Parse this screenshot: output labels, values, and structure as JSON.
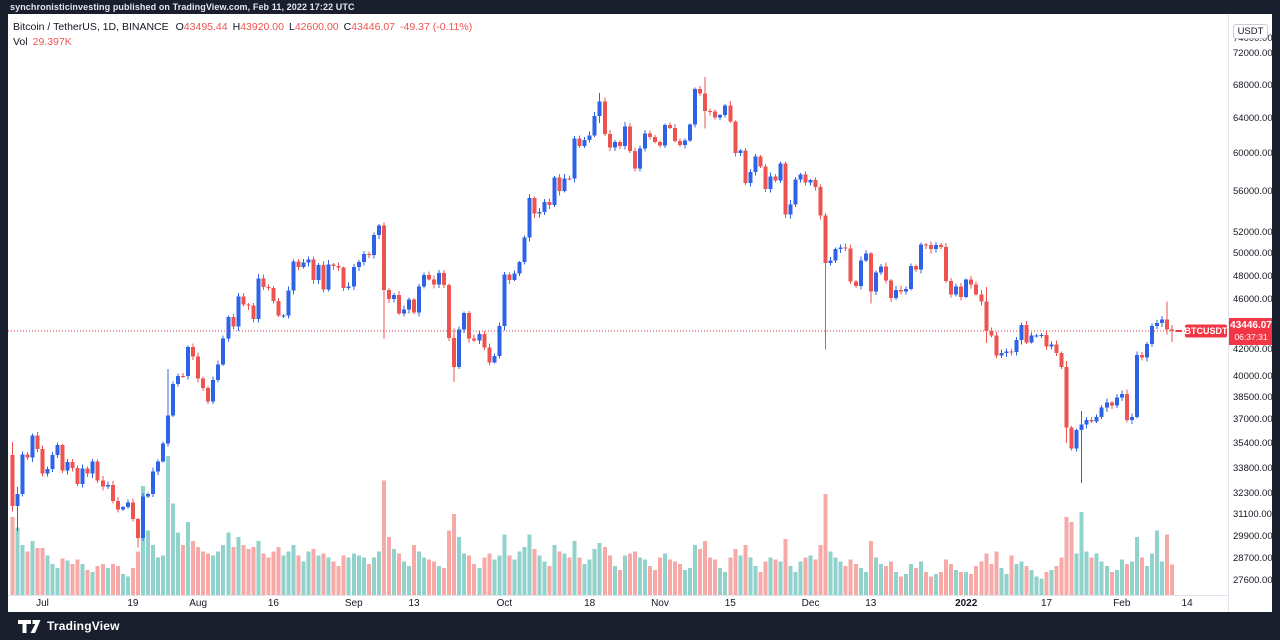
{
  "top_bar": {
    "publish_text": "synchronisticinvesting published on TradingView.com, Feb 11, 2022 17:22 UTC"
  },
  "legend": {
    "symbol_line": "Bitcoin / TetherUS, 1D, BINANCE",
    "ohlc": [
      {
        "label": "O",
        "value": "43495.44"
      },
      {
        "label": "H",
        "value": "43920.00"
      },
      {
        "label": "L",
        "value": "42600.00"
      },
      {
        "label": "C",
        "value": "43446.07"
      }
    ],
    "change": "-49.37 (-0.11%)",
    "vol_label": "Vol",
    "vol_value": "29.397K"
  },
  "price_axis": {
    "currency_button": "USDT",
    "last_price_label": "43446.07",
    "countdown": "06:37:31"
  },
  "price_flag": "BTCUSDT",
  "footer": {
    "brand": "TradingView"
  },
  "colors": {
    "up": "#2e63e8",
    "down": "#ef5350",
    "vol_up": "rgba(38,166,154,0.5)",
    "vol_down": "rgba(239,83,80,0.5)",
    "price_line": "#f23645",
    "frame": "#1a1f2e",
    "axis_text": "#131722"
  },
  "chart_data": {
    "type": "candlestick_with_volume",
    "symbol": "BTCUSDT",
    "exchange": "BINANCE",
    "interval": "1D",
    "price_scale": "log",
    "start_date": "2021-06-25",
    "end_date": "2022-02-11",
    "last_price": 43446.07,
    "current_bar": {
      "open": 43495.44,
      "high": 43920.0,
      "low": 42600.0,
      "close": 43446.07,
      "volume_k": 29.397
    },
    "first_open": 34663,
    "closes": [
      31584,
      32283,
      34700,
      34494,
      35911,
      35045,
      33504,
      33786,
      34669,
      35286,
      33690,
      34220,
      33862,
      32875,
      33815,
      33502,
      34259,
      33086,
      32729,
      32820,
      31880,
      31383,
      31520,
      31778,
      30839,
      29790,
      32144,
      32287,
      33634,
      34258,
      35381,
      37237,
      39457,
      40019,
      40016,
      42206,
      41461,
      39845,
      39147,
      38207,
      39723,
      40862,
      42836,
      44572,
      43794,
      46253,
      45584,
      45511,
      44399,
      47800,
      47068,
      46973,
      45901,
      44686,
      44700,
      46760,
      49322,
      48821,
      49239,
      49488,
      47674,
      48973,
      46843,
      49056,
      48897,
      48760,
      46982,
      47100,
      48810,
      49246,
      49999,
      49915,
      51753,
      52663,
      46811,
      46048,
      46395,
      44850,
      45173,
      46025,
      44940,
      47092,
      48121,
      47737,
      47299,
      48292,
      47239,
      42901,
      40693,
      43574,
      44895,
      42839,
      42687,
      43204,
      42150,
      41026,
      41522,
      43824,
      48165,
      47672,
      48222,
      49243,
      51505,
      55343,
      53802,
      53957,
      54949,
      54659,
      57471,
      56041,
      57372,
      57347,
      61672,
      60875,
      61528,
      62010,
      64280,
      65992,
      62210,
      60688,
      61286,
      60852,
      63078,
      60328,
      58413,
      60575,
      62253,
      61859,
      61299,
      60911,
      63219,
      62896,
      61395,
      60937,
      61470,
      63273,
      67525,
      66947,
      64882,
      64774,
      64122,
      64380,
      65519,
      63606,
      60058,
      60344,
      56891,
      58052,
      59707,
      58622,
      56247,
      57541,
      57139,
      58960,
      53726,
      54721,
      57274,
      57776,
      56950,
      57184,
      56480,
      53601,
      49152,
      49396,
      50441,
      50588,
      50471,
      47545,
      47140,
      49389,
      50053,
      46702,
      48343,
      48864,
      47632,
      46131,
      46834,
      46681,
      46914,
      48889,
      48588,
      50838,
      50820,
      50429,
      50809,
      50640,
      47588,
      46444,
      47120,
      46216,
      47722,
      47286,
      46446,
      45832,
      43425,
      43097,
      41557,
      41733,
      41864,
      41822,
      42735,
      43902,
      42560,
      43073,
      43096,
      43113,
      42250,
      42375,
      41744,
      40680,
      36445,
      35071,
      36276,
      36654,
      36954,
      36852,
      37138,
      37784,
      38138,
      37917,
      38483,
      38743,
      36944,
      37149,
      41574,
      41382,
      42412,
      43840,
      44096,
      44347,
      43571,
      43446
    ],
    "volumes_k": [
      75,
      65,
      48,
      42,
      52,
      45,
      45,
      38,
      30,
      26,
      35,
      33,
      30,
      34,
      30,
      24,
      22,
      28,
      30,
      26,
      30,
      28,
      20,
      18,
      26,
      42,
      105,
      62,
      48,
      36,
      38,
      134,
      88,
      60,
      48,
      70,
      52,
      46,
      42,
      40,
      38,
      42,
      48,
      60,
      46,
      56,
      48,
      44,
      46,
      52,
      40,
      36,
      42,
      46,
      38,
      42,
      48,
      38,
      32,
      42,
      44,
      38,
      40,
      36,
      32,
      28,
      38,
      36,
      40,
      38,
      36,
      30,
      36,
      42,
      110,
      56,
      44,
      40,
      32,
      28,
      48,
      42,
      36,
      34,
      32,
      28,
      26,
      62,
      78,
      56,
      40,
      38,
      30,
      26,
      36,
      40,
      34,
      38,
      58,
      38,
      34,
      42,
      46,
      58,
      44,
      38,
      32,
      28,
      48,
      42,
      40,
      36,
      52,
      36,
      30,
      34,
      44,
      50,
      46,
      38,
      28,
      24,
      38,
      40,
      42,
      36,
      34,
      28,
      24,
      36,
      40,
      34,
      32,
      30,
      24,
      26,
      48,
      44,
      52,
      36,
      34,
      26,
      22,
      36,
      44,
      38,
      48,
      36,
      28,
      22,
      32,
      36,
      34,
      32,
      54,
      28,
      22,
      32,
      36,
      38,
      34,
      48,
      97,
      42,
      36,
      32,
      28,
      34,
      30,
      26,
      22,
      52,
      36,
      30,
      28,
      32,
      22,
      18,
      20,
      30,
      26,
      32,
      22,
      18,
      20,
      22,
      34,
      30,
      24,
      22,
      22,
      20,
      28,
      32,
      40,
      30,
      42,
      26,
      20,
      38,
      30,
      32,
      28,
      24,
      18,
      16,
      22,
      24,
      28,
      36,
      75,
      70,
      40,
      80,
      42,
      36,
      40,
      32,
      28,
      22,
      24,
      34,
      30,
      32,
      56,
      36,
      28,
      40,
      62,
      32,
      58,
      29.4
    ],
    "wick_overrides": {
      "0": [
        35500,
        31275
      ],
      "1": [
        32700,
        30173
      ],
      "25": [
        30900,
        29278
      ],
      "31": [
        40550,
        35205
      ],
      "74": [
        52920,
        42843
      ],
      "88": [
        43639,
        39600
      ],
      "117": [
        67000,
        63481
      ],
      "138": [
        69000,
        62822
      ],
      "162": [
        53859,
        42000
      ],
      "171": [
        50189,
        45672
      ],
      "194": [
        47070,
        42500
      ],
      "210": [
        41120,
        35440
      ],
      "213": [
        37550,
        32950
      ],
      "230": [
        45855,
        43174
      ],
      "231": [
        43920,
        42600
      ]
    },
    "y_axis_ticks": [
      74000,
      72000,
      68000,
      64000,
      60000,
      56000,
      52000,
      50000,
      48000,
      46000,
      44000,
      42000,
      40000,
      38500,
      37000,
      35400,
      33800,
      32300,
      31100,
      29900,
      28700,
      27600
    ],
    "x_axis_ticks": [
      {
        "label": "Jul",
        "day_index": 6
      },
      {
        "label": "19",
        "day_index": 24
      },
      {
        "label": "Aug",
        "day_index": 37
      },
      {
        "label": "16",
        "day_index": 52
      },
      {
        "label": "Sep",
        "day_index": 68
      },
      {
        "label": "13",
        "day_index": 80
      },
      {
        "label": "Oct",
        "day_index": 98
      },
      {
        "label": "18",
        "day_index": 115
      },
      {
        "label": "Nov",
        "day_index": 129
      },
      {
        "label": "15",
        "day_index": 143
      },
      {
        "label": "Dec",
        "day_index": 159
      },
      {
        "label": "13",
        "day_index": 171
      },
      {
        "label": "2022",
        "day_index": 190,
        "bold": true
      },
      {
        "label": "17",
        "day_index": 206
      },
      {
        "label": "Feb",
        "day_index": 221
      },
      {
        "label": "14",
        "day_index": 234
      }
    ]
  }
}
